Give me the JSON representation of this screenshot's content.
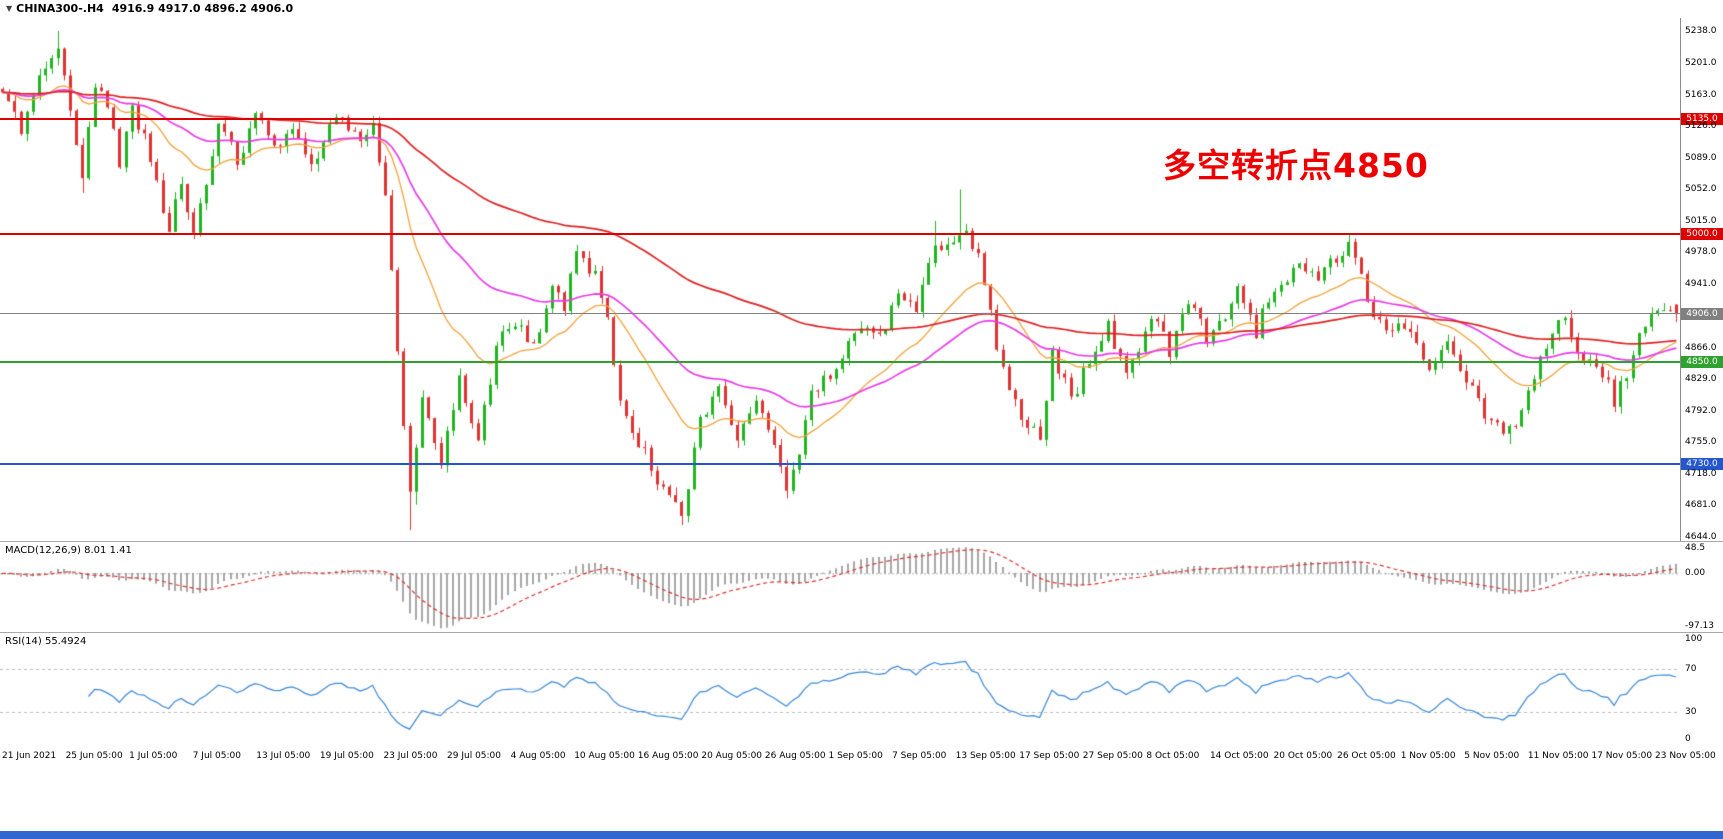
{
  "header": {
    "symbol": "CHINA300-.H4",
    "ohlc": "4916.9 4917.0 4896.2 4906.0"
  },
  "annotation": {
    "text": "多空转折点4850",
    "color": "#ee0000"
  },
  "price_axis": {
    "ticks": [
      "5238.0",
      "5201.0",
      "5163.0",
      "5126.0",
      "5089.0",
      "5052.0",
      "5015.0",
      "4978.0",
      "4941.0",
      "4866.0",
      "4829.0",
      "4792.0",
      "4755.0",
      "4718.0",
      "4681.0",
      "4644.0"
    ]
  },
  "hlines": [
    {
      "id": "resistance-5135",
      "label": "5135.0",
      "price": 5135,
      "color": "#dd0000",
      "thickness": 2
    },
    {
      "id": "resistance-5000",
      "label": "5000.0",
      "price": 5000,
      "color": "#dd0000",
      "thickness": 2
    },
    {
      "id": "support-4850",
      "label": "4850.0",
      "price": 4850,
      "color": "#2ea12e",
      "thickness": 2
    },
    {
      "id": "support-4730",
      "label": "4730.0",
      "price": 4730,
      "color": "#2356cf",
      "thickness": 2
    },
    {
      "id": "current-price",
      "label": "4906.0",
      "price": 4906,
      "color": "#808080",
      "thickness": 1
    }
  ],
  "macd_panel": {
    "label": "MACD(12,26,9) 8.01 1.41",
    "axis": [
      "48.5",
      "0.00",
      "-97.13"
    ],
    "range": [
      -97.13,
      48.5
    ]
  },
  "rsi_panel": {
    "label": "RSI(14) 55.4924",
    "axis": [
      "100",
      "70",
      "30",
      "0"
    ],
    "levels": [
      70,
      30
    ]
  },
  "time_axis": {
    "labels": [
      "21 Jun 2021",
      "25 Jun 05:00",
      "1 Jul 05:00",
      "7 Jul 05:00",
      "13 Jul 05:00",
      "19 Jul 05:00",
      "23 Jul 05:00",
      "29 Jul 05:00",
      "4 Aug 05:00",
      "10 Aug 05:00",
      "16 Aug 05:00",
      "20 Aug 05:00",
      "26 Aug 05:00",
      "1 Sep 05:00",
      "7 Sep 05:00",
      "13 Sep 05:00",
      "17 Sep 05:00",
      "27 Sep 05:00",
      "8 Oct 05:00",
      "14 Oct 05:00",
      "20 Oct 05:00",
      "26 Oct 05:00",
      "1 Nov 05:00",
      "5 Nov 05:00",
      "11 Nov 05:00",
      "17 Nov 05:00",
      "23 Nov 05:00"
    ]
  },
  "chart_data": {
    "type": "candlestick",
    "title": "CHINA300-.H4",
    "timeframe": "H4",
    "price_range": [
      4644,
      5238
    ],
    "num_candles": 272,
    "seed": 11,
    "noise": 9,
    "wick_extra": 9,
    "up_color": "#21b421",
    "down_color": "#e03333",
    "close_waypoints": [
      [
        0,
        5170
      ],
      [
        3,
        5120
      ],
      [
        6,
        5185
      ],
      [
        9,
        5225
      ],
      [
        11,
        5140
      ],
      [
        13,
        5060
      ],
      [
        15,
        5180
      ],
      [
        17,
        5150
      ],
      [
        19,
        5085
      ],
      [
        21,
        5150
      ],
      [
        24,
        5090
      ],
      [
        27,
        5005
      ],
      [
        29,
        5060
      ],
      [
        31,
        4995
      ],
      [
        33,
        5060
      ],
      [
        35,
        5130
      ],
      [
        38,
        5085
      ],
      [
        41,
        5140
      ],
      [
        44,
        5095
      ],
      [
        47,
        5130
      ],
      [
        50,
        5075
      ],
      [
        52,
        5110
      ],
      [
        55,
        5140
      ],
      [
        58,
        5100
      ],
      [
        60,
        5125
      ],
      [
        62,
        5050
      ],
      [
        64,
        4860
      ],
      [
        66,
        4700
      ],
      [
        68,
        4800
      ],
      [
        71,
        4735
      ],
      [
        74,
        4825
      ],
      [
        77,
        4765
      ],
      [
        80,
        4865
      ],
      [
        83,
        4900
      ],
      [
        86,
        4870
      ],
      [
        89,
        4940
      ],
      [
        91,
        4915
      ],
      [
        93,
        4985
      ],
      [
        96,
        4950
      ],
      [
        98,
        4900
      ],
      [
        100,
        4800
      ],
      [
        102,
        4760
      ],
      [
        104,
        4745
      ],
      [
        107,
        4695
      ],
      [
        110,
        4670
      ],
      [
        113,
        4780
      ],
      [
        116,
        4820
      ],
      [
        119,
        4755
      ],
      [
        122,
        4800
      ],
      [
        124,
        4765
      ],
      [
        127,
        4705
      ],
      [
        129,
        4740
      ],
      [
        131,
        4815
      ],
      [
        135,
        4845
      ],
      [
        139,
        4895
      ],
      [
        142,
        4880
      ],
      [
        145,
        4925
      ],
      [
        148,
        4905
      ],
      [
        151,
        4985
      ],
      [
        155,
        5000
      ],
      [
        158,
        4985
      ],
      [
        161,
        4870
      ],
      [
        164,
        4800
      ],
      [
        166,
        4780
      ],
      [
        168,
        4755
      ],
      [
        170,
        4860
      ],
      [
        173,
        4805
      ],
      [
        176,
        4850
      ],
      [
        179,
        4890
      ],
      [
        182,
        4835
      ],
      [
        185,
        4880
      ],
      [
        187,
        4905
      ],
      [
        189,
        4860
      ],
      [
        192,
        4920
      ],
      [
        195,
        4880
      ],
      [
        197,
        4895
      ],
      [
        200,
        4935
      ],
      [
        203,
        4885
      ],
      [
        205,
        4925
      ],
      [
        207,
        4935
      ],
      [
        210,
        4970
      ],
      [
        213,
        4945
      ],
      [
        216,
        4975
      ],
      [
        218,
        4985
      ],
      [
        221,
        4925
      ],
      [
        224,
        4880
      ],
      [
        226,
        4895
      ],
      [
        228,
        4890
      ],
      [
        231,
        4845
      ],
      [
        234,
        4865
      ],
      [
        236,
        4840
      ],
      [
        238,
        4825
      ],
      [
        240,
        4785
      ],
      [
        243,
        4765
      ],
      [
        245,
        4770
      ],
      [
        247,
        4815
      ],
      [
        249,
        4850
      ],
      [
        251,
        4890
      ],
      [
        253,
        4905
      ],
      [
        255,
        4865
      ],
      [
        257,
        4845
      ],
      [
        259,
        4840
      ],
      [
        261,
        4805
      ],
      [
        263,
        4835
      ],
      [
        265,
        4875
      ],
      [
        267,
        4900
      ],
      [
        271,
        4906
      ]
    ],
    "spikes": [
      {
        "i": 9,
        "high": 5238
      },
      {
        "i": 13,
        "low": 5048
      },
      {
        "i": 66,
        "low": 4652
      },
      {
        "i": 67,
        "low": 4682
      },
      {
        "i": 110,
        "low": 4658
      },
      {
        "i": 127,
        "low": 4692
      },
      {
        "i": 151,
        "high": 5015
      },
      {
        "i": 155,
        "high": 5052
      },
      {
        "i": 218,
        "high": 4999
      },
      {
        "i": 244,
        "low": 4753
      },
      {
        "i": 262,
        "low": 4795
      }
    ],
    "last_candle": {
      "open": 4916.9,
      "high": 4917.0,
      "low": 4896.2,
      "close": 4906.0
    },
    "moving_averages": [
      {
        "name": "fast",
        "period": 20,
        "color": "#f2a23a",
        "width": 1.3
      },
      {
        "name": "mid",
        "period": 44,
        "color": "#e83ce8",
        "width": 1.7
      },
      {
        "name": "slow",
        "period": 110,
        "color": "#dd2222",
        "width": 1.7
      }
    ],
    "indicators": {
      "macd": {
        "periods": [
          12,
          26,
          9
        ],
        "current_macd": 8.01,
        "current_signal": 1.41,
        "range": [
          -97.13,
          48.5
        ],
        "hist_fill": "#cccccc",
        "hist_stroke": "#909090",
        "signal_color": "#dd3333"
      },
      "rsi": {
        "period": 14,
        "current": 55.4924,
        "range": [
          0,
          100
        ],
        "levels": [
          70,
          30
        ],
        "line_color": "#3b87d9"
      }
    }
  }
}
